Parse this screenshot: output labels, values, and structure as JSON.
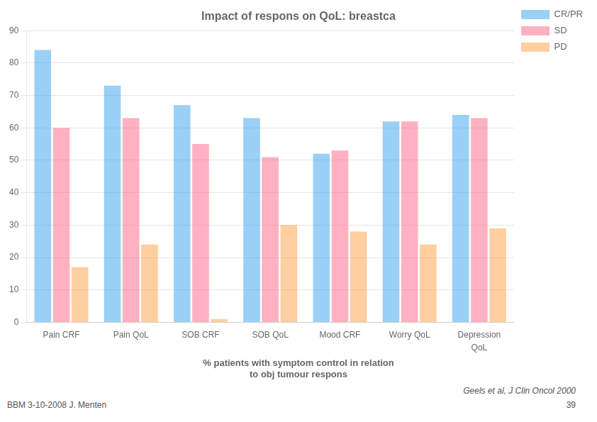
{
  "chart_data": {
    "type": "bar",
    "title": "Impact of respons on QoL: breastca",
    "subtitle": "% patients with symptom control in relation\nto obj tumour respons",
    "categories": [
      "Pain CRF",
      "Pain QoL",
      "SOB CRF",
      "SOB QoL",
      "Mood CRF",
      "Worry QoL",
      "Depression"
    ],
    "series": [
      {
        "name": "CR/PR",
        "values": [
          84,
          73,
          67,
          63,
          52,
          62,
          64
        ]
      },
      {
        "name": "SD",
        "values": [
          60,
          63,
          55,
          51,
          53,
          62,
          63
        ]
      },
      {
        "name": "PD",
        "values": [
          17,
          24,
          1,
          30,
          28,
          24,
          29
        ]
      }
    ],
    "ylim": [
      0,
      90
    ],
    "yticks": [
      0,
      10,
      20,
      30,
      40,
      50,
      60,
      70,
      80,
      90
    ],
    "grid": true,
    "legend": "right",
    "annotations": [
      {
        "text": "QoL",
        "x": "Depression"
      },
      {
        "text": "Geels et al, J Clin Oncol 2000"
      },
      {
        "text": "BBM 3-10-2008 J. Menten"
      },
      {
        "text": "39"
      }
    ]
  }
}
